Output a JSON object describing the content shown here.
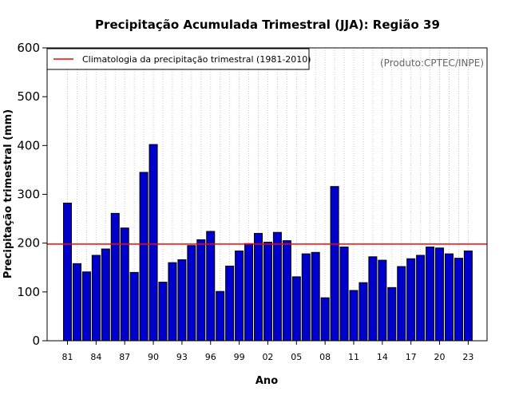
{
  "chart_data": {
    "type": "bar",
    "title": "Precipitação Acumulada Trimestral (JJA): Região 39",
    "xlabel": "Ano",
    "ylabel": "Precipitação trimestral (mm)",
    "ylim": [
      0,
      600
    ],
    "yticks": [
      0,
      100,
      200,
      300,
      400,
      500,
      600
    ],
    "xtick_labels": [
      "81",
      "84",
      "87",
      "90",
      "93",
      "96",
      "99",
      "02",
      "05",
      "08",
      "11",
      "14",
      "17",
      "20",
      "23"
    ],
    "xtick_years": [
      1981,
      1984,
      1987,
      1990,
      1993,
      1996,
      1999,
      2002,
      2005,
      2008,
      2011,
      2014,
      2017,
      2020,
      2023
    ],
    "grid": "vertical dotted lines at each year",
    "years": [
      1981,
      1982,
      1983,
      1984,
      1985,
      1986,
      1987,
      1988,
      1989,
      1990,
      1991,
      1992,
      1993,
      1994,
      1995,
      1996,
      1997,
      1998,
      1999,
      2000,
      2001,
      2002,
      2003,
      2004,
      2005,
      2006,
      2007,
      2008,
      2009,
      2010,
      2011,
      2012,
      2013,
      2014,
      2015,
      2016,
      2017,
      2018,
      2019,
      2020,
      2021,
      2022,
      2023
    ],
    "values": [
      282,
      158,
      141,
      175,
      188,
      261,
      231,
      140,
      345,
      402,
      120,
      160,
      166,
      195,
      207,
      224,
      101,
      153,
      184,
      199,
      220,
      202,
      222,
      205,
      131,
      178,
      181,
      88,
      316,
      192,
      103,
      119,
      172,
      165,
      109,
      152,
      168,
      175,
      192,
      190,
      178,
      169,
      184
    ],
    "bar_color": "#0000cc",
    "climatology": {
      "label": "Climatologia da precipitação trimestral (1981-2010)",
      "value": 198,
      "color": "#ff0000"
    },
    "legend_position": "top-left",
    "credit": "(Produto:CPTEC/INPE)"
  }
}
